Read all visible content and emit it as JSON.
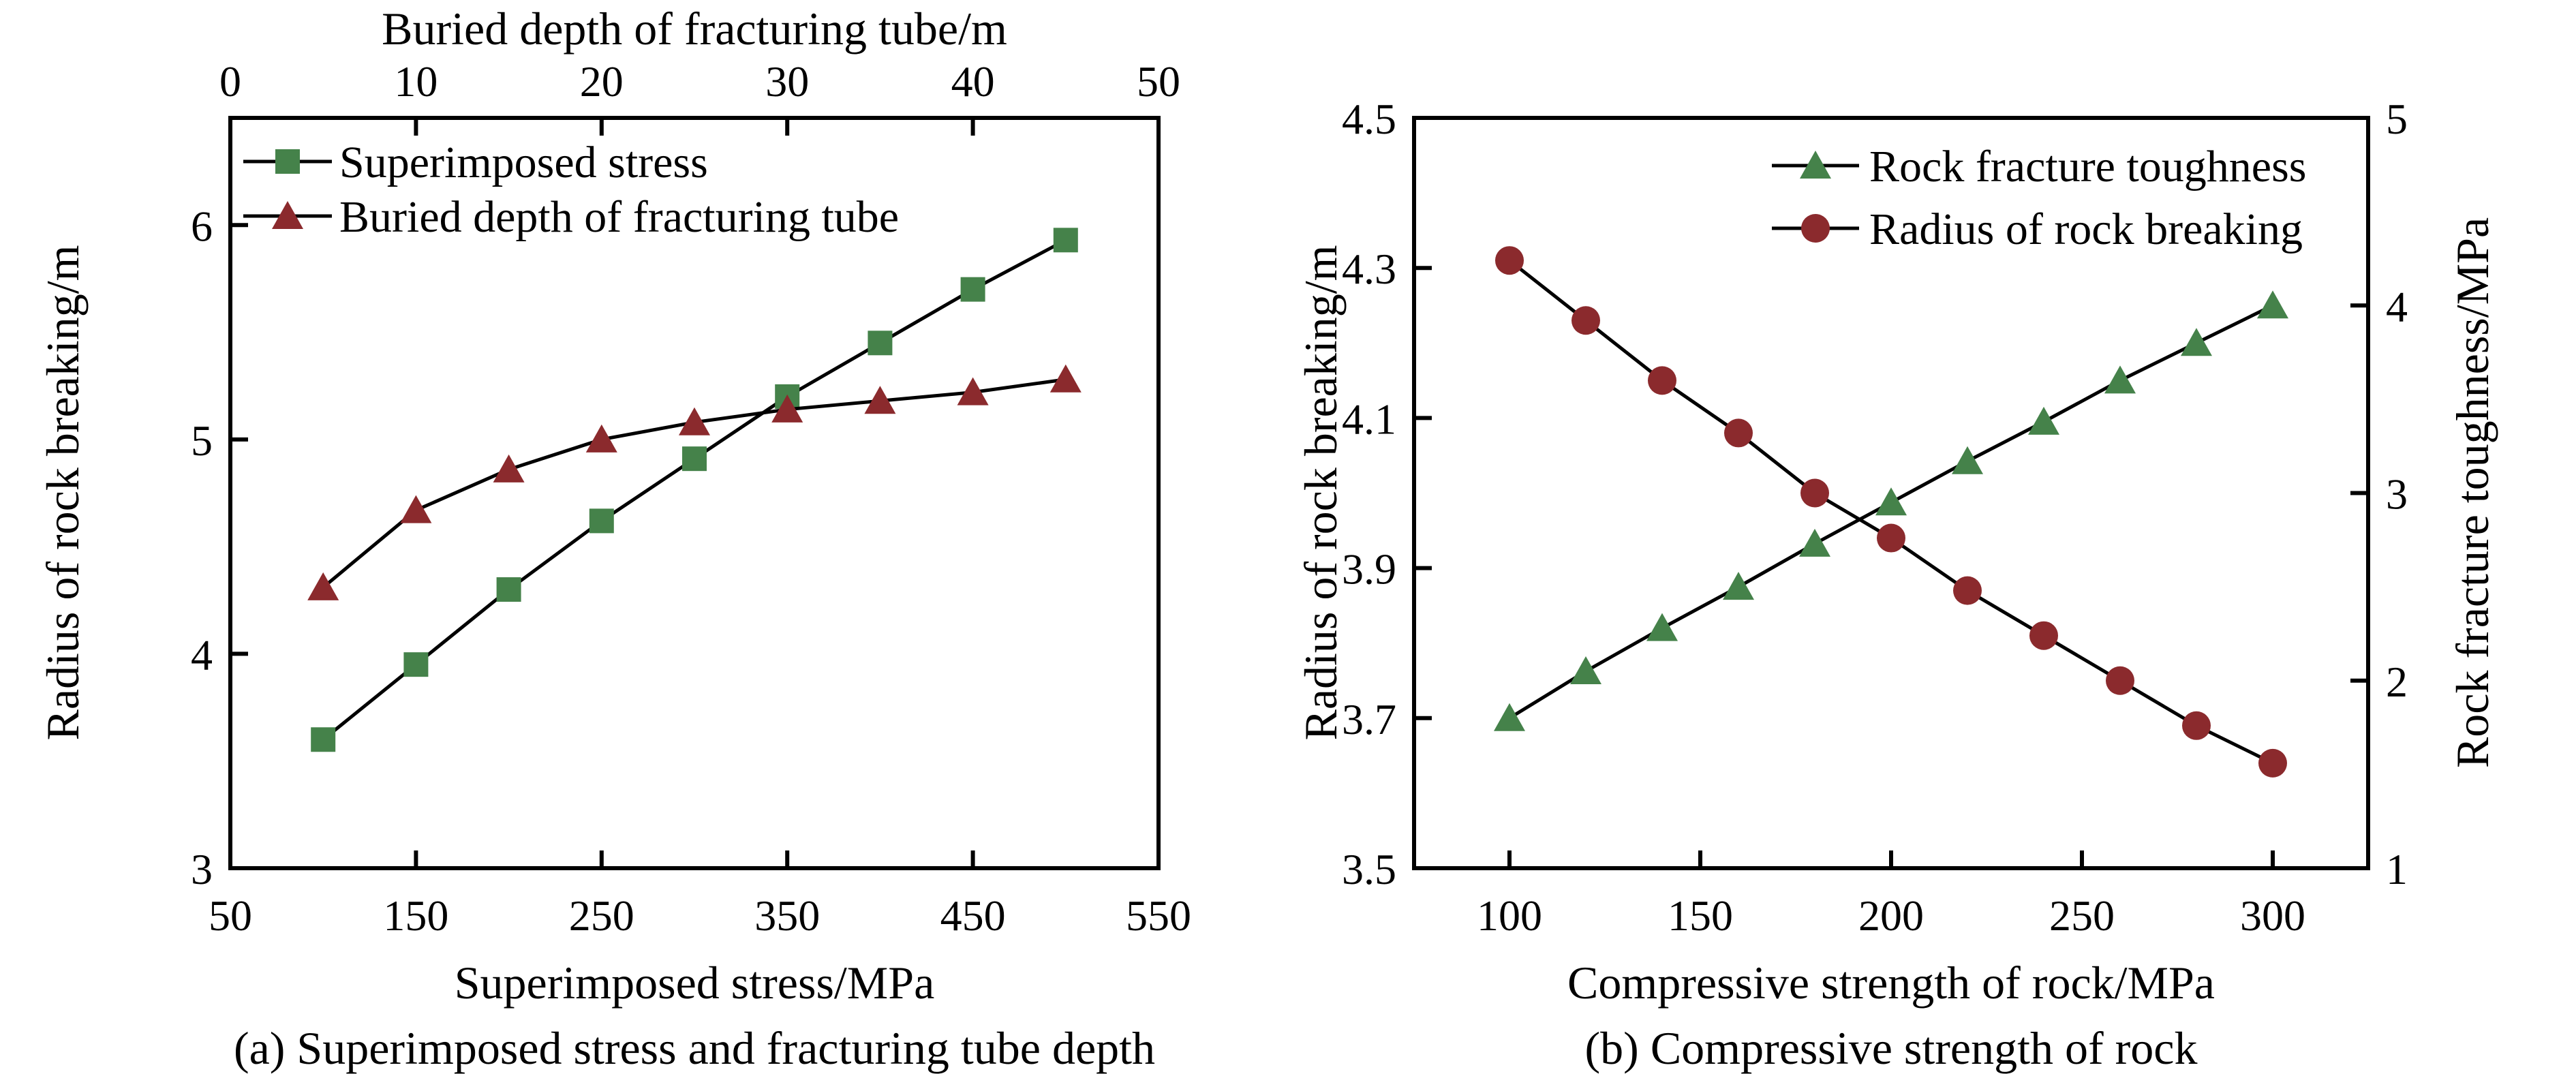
{
  "page": {
    "background": "#ffffff",
    "text_color": "#000000",
    "axis_color": "#000000"
  },
  "chart_data": [
    {
      "type": "line",
      "caption": "(a) Superimposed stress and fracturing tube depth",
      "xlabel": "Superimposed stress/MPa",
      "x2label": "Buried depth of fracturing tube/m",
      "ylabel": "Radius of rock breaking/m",
      "grid": false,
      "legend_position": "inside-top-left",
      "axes": {
        "x": {
          "range": [
            50,
            550
          ],
          "ticks": [
            50,
            150,
            250,
            350,
            450,
            550
          ],
          "tick_labels": [
            "50",
            "150",
            "250",
            "350",
            "450",
            "550"
          ]
        },
        "x2": {
          "range": [
            0,
            50
          ],
          "ticks": [
            0,
            10,
            20,
            30,
            40,
            50
          ],
          "tick_labels": [
            "0",
            "10",
            "20",
            "30",
            "40",
            "50"
          ]
        },
        "y": {
          "range": [
            3,
            6.5
          ],
          "ticks": [
            3,
            4,
            5,
            6
          ],
          "tick_labels": [
            "3",
            "4",
            "5",
            "6"
          ]
        }
      },
      "series": [
        {
          "name": "Superimposed stress",
          "marker": "square",
          "color": "#45824A",
          "x_axis": "x",
          "y_axis": "y",
          "x": [
            100,
            150,
            200,
            250,
            300,
            350,
            400,
            450,
            500
          ],
          "y": [
            3.6,
            3.95,
            4.3,
            4.62,
            4.91,
            5.2,
            5.45,
            5.7,
            5.93
          ]
        },
        {
          "name": "Buried depth of fracturing tube",
          "marker": "triangle",
          "color": "#8B2A2D",
          "x_axis": "x2",
          "y_axis": "y",
          "x": [
            5,
            10,
            15,
            20,
            25,
            30,
            35,
            40,
            45
          ],
          "y": [
            4.31,
            4.67,
            4.86,
            5.0,
            5.08,
            5.14,
            5.18,
            5.22,
            5.28
          ]
        }
      ]
    },
    {
      "type": "line",
      "caption": "(b) Compressive strength of rock",
      "xlabel": "Compressive strength of rock/MPa",
      "ylabel": "Radius of rock breaking/m",
      "y2label": "Rock fracture toughness/MPa",
      "grid": false,
      "legend_position": "inside-top-center",
      "axes": {
        "x": {
          "range": [
            75,
            325
          ],
          "ticks": [
            100,
            150,
            200,
            250,
            300
          ],
          "tick_labels": [
            "100",
            "150",
            "200",
            "250",
            "300"
          ]
        },
        "y": {
          "range": [
            3.5,
            4.5
          ],
          "ticks": [
            3.5,
            3.7,
            3.9,
            4.1,
            4.3,
            4.5
          ],
          "tick_labels": [
            "3.5",
            "3.7",
            "3.9",
            "4.1",
            "4.3",
            "4.5"
          ]
        },
        "y2": {
          "range": [
            1,
            5
          ],
          "ticks": [
            1,
            2,
            3,
            4,
            5
          ],
          "tick_labels": [
            "1",
            "2",
            "3",
            "4",
            "5"
          ]
        }
      },
      "series": [
        {
          "name": "Rock fracture toughness",
          "marker": "triangle",
          "color": "#45824A",
          "x_axis": "x",
          "y_axis": "y2",
          "x": [
            100,
            120,
            140,
            160,
            180,
            200,
            220,
            240,
            260,
            280,
            300
          ],
          "y": [
            1.8,
            2.05,
            2.28,
            2.5,
            2.73,
            2.95,
            3.17,
            3.38,
            3.6,
            3.8,
            4.0
          ]
        },
        {
          "name": "Radius of rock breaking",
          "marker": "circle",
          "color": "#8B2A2D",
          "x_axis": "x",
          "y_axis": "y",
          "x": [
            100,
            120,
            140,
            160,
            180,
            200,
            220,
            240,
            260,
            280,
            300
          ],
          "y": [
            4.31,
            4.23,
            4.15,
            4.08,
            4.0,
            3.94,
            3.87,
            3.81,
            3.75,
            3.69,
            3.64
          ]
        }
      ]
    }
  ]
}
